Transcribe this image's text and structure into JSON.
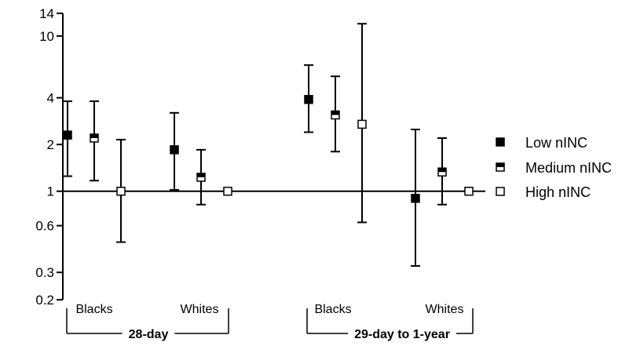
{
  "chart_data": {
    "type": "scatter",
    "y_scale": "log",
    "ylim": [
      0.2,
      14
    ],
    "yticks": [
      {
        "value": 0.2,
        "label": "0.2"
      },
      {
        "value": 0.3,
        "label": "0.3"
      },
      {
        "value": 0.6,
        "label": "0.6"
      },
      {
        "value": 1,
        "label": "1"
      },
      {
        "value": 2,
        "label": "2"
      },
      {
        "value": 4,
        "label": "4"
      },
      {
        "value": 10,
        "label": "10"
      },
      {
        "value": 14,
        "label": "14"
      }
    ],
    "reference_line": 1,
    "groups": [
      {
        "period": "28-day",
        "subgroups": [
          {
            "label": "Blacks",
            "points": [
              {
                "series": "Low nINC",
                "value": 2.3,
                "lower": 1.25,
                "upper": 3.8
              },
              {
                "series": "Medium nINC",
                "value": 2.2,
                "lower": 1.17,
                "upper": 3.8
              },
              {
                "series": "High nINC",
                "value": 1.0,
                "lower": 0.47,
                "upper": 2.15
              }
            ]
          },
          {
            "label": "Whites",
            "points": [
              {
                "series": "Low nINC",
                "value": 1.85,
                "lower": 1.02,
                "upper": 3.2
              },
              {
                "series": "Medium nINC",
                "value": 1.23,
                "lower": 0.82,
                "upper": 1.85
              },
              {
                "series": "High nINC",
                "value": 1.0,
                "lower": 1.0,
                "upper": 1.0
              }
            ]
          }
        ]
      },
      {
        "period": "29-day to 1-year",
        "subgroups": [
          {
            "label": "Blacks",
            "points": [
              {
                "series": "Low nINC",
                "value": 3.9,
                "lower": 2.4,
                "upper": 6.5
              },
              {
                "series": "Medium nINC",
                "value": 3.1,
                "lower": 1.8,
                "upper": 5.5
              },
              {
                "series": "High nINC",
                "value": 2.7,
                "lower": 0.63,
                "upper": 12.0
              }
            ]
          },
          {
            "label": "Whites",
            "points": [
              {
                "series": "Low nINC",
                "value": 0.9,
                "lower": 0.33,
                "upper": 2.5
              },
              {
                "series": "Medium nINC",
                "value": 1.33,
                "lower": 0.82,
                "upper": 2.2
              },
              {
                "series": "High nINC",
                "value": 1.0,
                "lower": 1.0,
                "upper": 1.0
              }
            ]
          }
        ]
      }
    ],
    "legend": {
      "placement": "right",
      "entries": [
        {
          "name": "Low nINC",
          "marker": "filled-square"
        },
        {
          "name": "Medium nINC",
          "marker": "half-filled-square"
        },
        {
          "name": "High nINC",
          "marker": "open-square"
        }
      ]
    },
    "colors": {
      "ink": "#000000",
      "background": "#ffffff"
    }
  }
}
